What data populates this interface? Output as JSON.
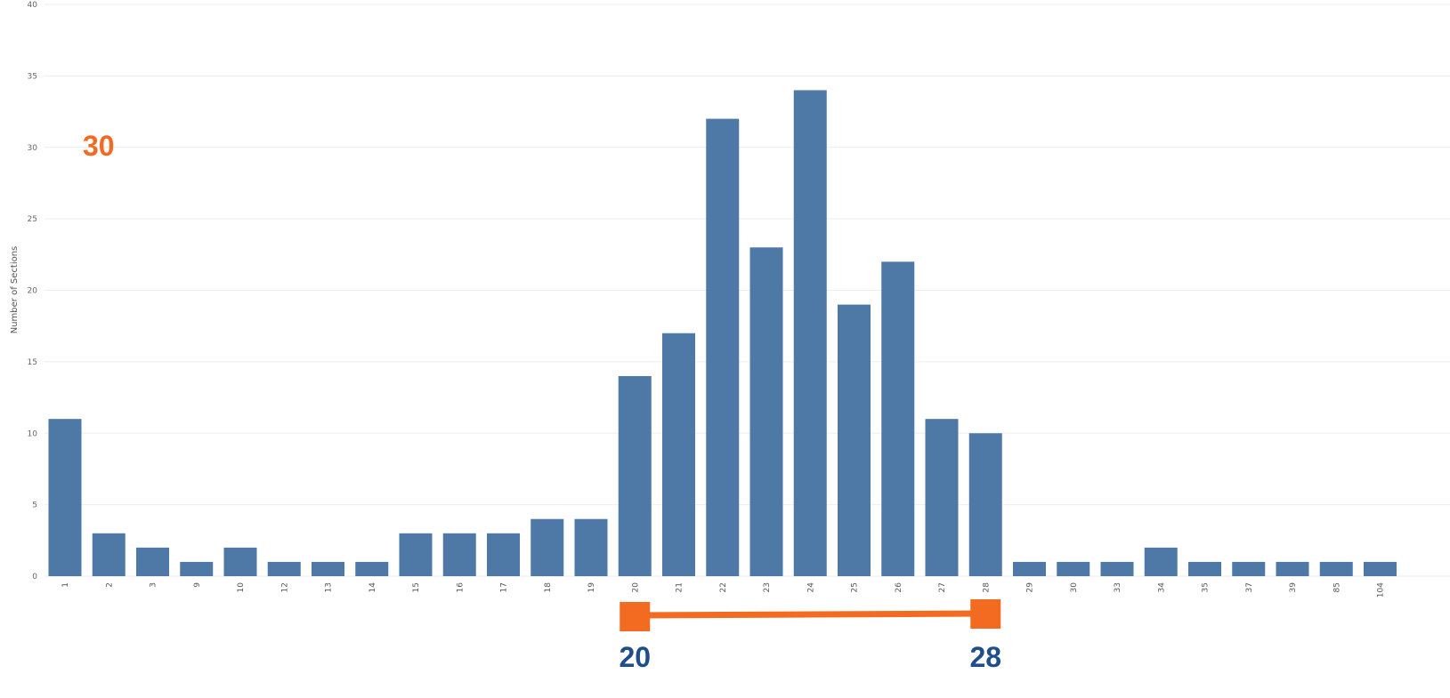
{
  "colors": {
    "bar": "#4e79a7",
    "highlight": "#f26b21",
    "range_label": "#1f4e8c",
    "grid": "#eeeeee"
  },
  "chart_data": {
    "type": "bar",
    "title": "",
    "xlabel": "",
    "ylabel": "Number of Sections",
    "categories": [
      "1",
      "2",
      "3",
      "9",
      "10",
      "12",
      "13",
      "14",
      "15",
      "16",
      "17",
      "18",
      "19",
      "20",
      "21",
      "22",
      "23",
      "24",
      "25",
      "26",
      "27",
      "28",
      "29",
      "30",
      "33",
      "34",
      "35",
      "37",
      "39",
      "85",
      "104"
    ],
    "values": [
      11,
      3,
      2,
      1,
      2,
      1,
      1,
      1,
      3,
      3,
      3,
      4,
      4,
      14,
      17,
      32,
      23,
      34,
      19,
      22,
      11,
      10,
      1,
      1,
      1,
      2,
      1,
      1,
      1,
      1,
      1
    ],
    "ylim": [
      0,
      40
    ],
    "yticks": [
      0,
      5,
      10,
      15,
      20,
      25,
      30,
      35,
      40
    ],
    "grid": true,
    "annotations": {
      "value_label": "30",
      "range": {
        "start_category": "20",
        "end_category": "28",
        "start_label": "20",
        "end_label": "28"
      }
    }
  }
}
